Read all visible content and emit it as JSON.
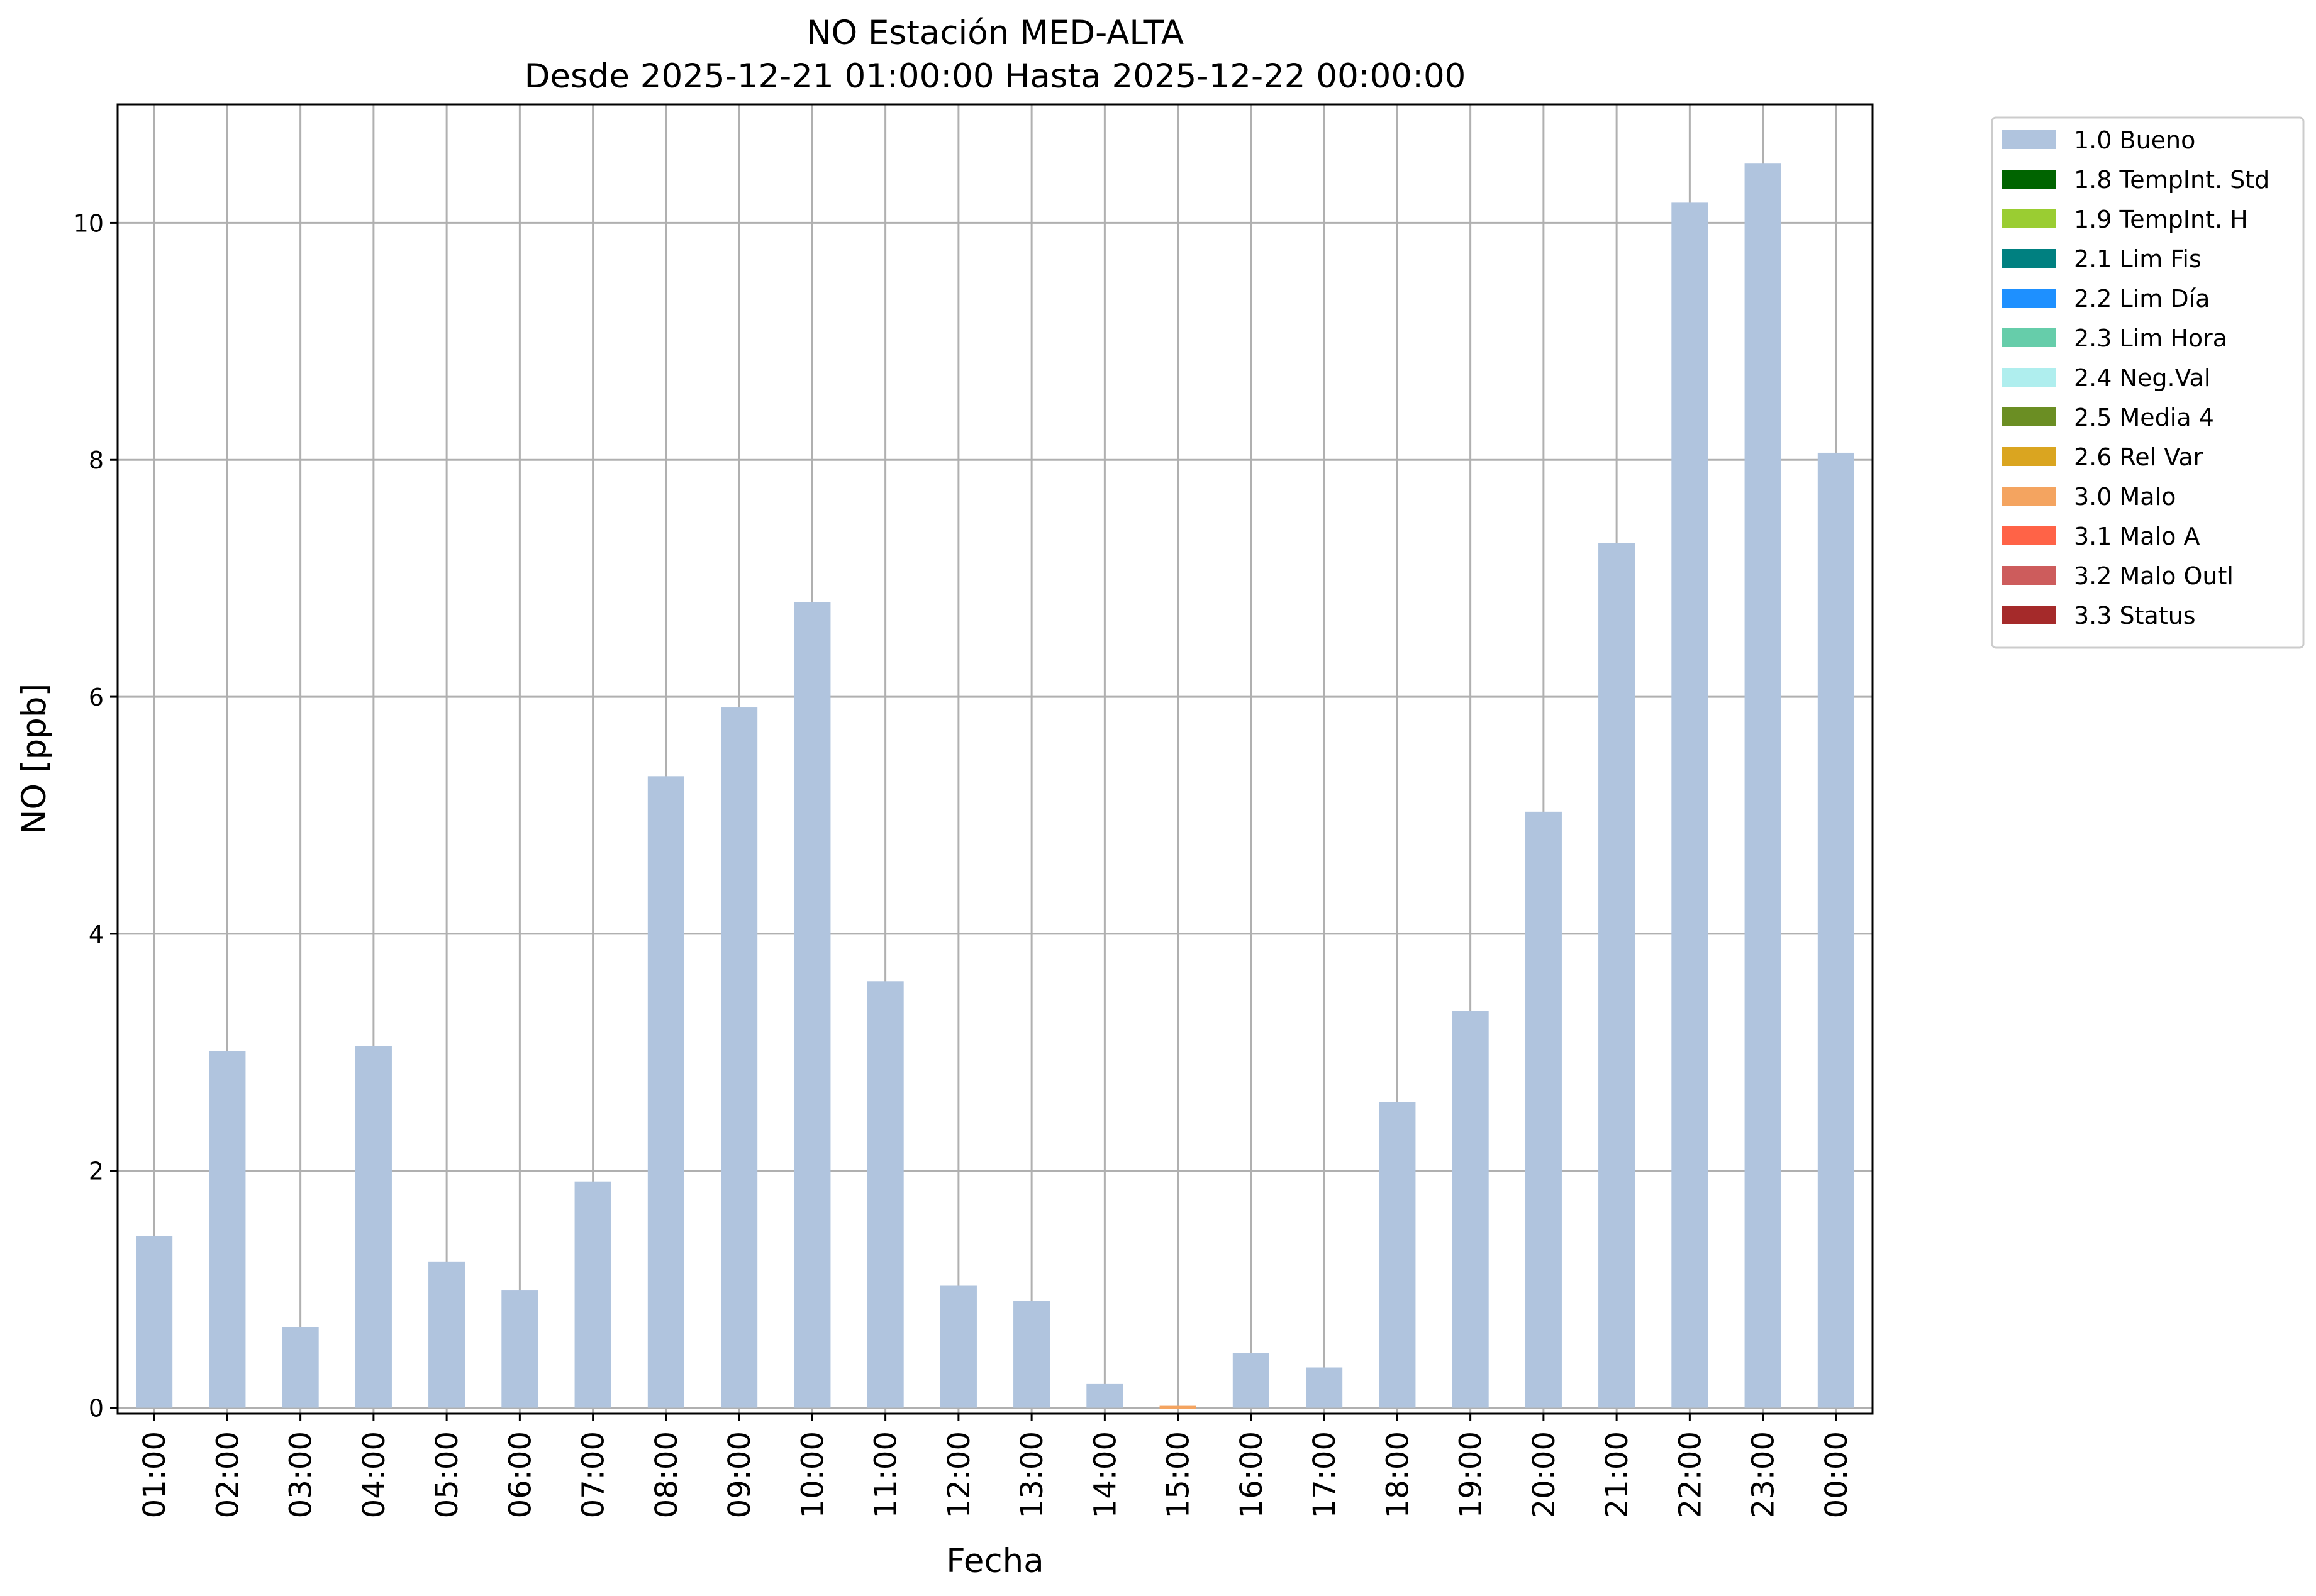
{
  "chart_data": {
    "type": "bar",
    "title": "NO Estación MED-ALTA",
    "subtitle": "Desde 2025-12-21 01:00:00 Hasta 2025-12-22 00:00:00",
    "xlabel": "Fecha",
    "ylabel": "NO [ppb]",
    "ylim": [
      -0.05,
      11.0
    ],
    "yticks": [
      0,
      2,
      4,
      6,
      8,
      10
    ],
    "grid": true,
    "legend_position": "outside-right-top",
    "categories": [
      "01:00",
      "02:00",
      "03:00",
      "04:00",
      "05:00",
      "06:00",
      "07:00",
      "08:00",
      "09:00",
      "10:00",
      "11:00",
      "12:00",
      "13:00",
      "14:00",
      "15:00",
      "16:00",
      "17:00",
      "18:00",
      "19:00",
      "20:00",
      "21:00",
      "22:00",
      "23:00",
      "00:00"
    ],
    "series": [
      {
        "name": "1.0 Bueno",
        "color": "#b0c4de",
        "values": [
          1.45,
          3.01,
          0.68,
          3.05,
          1.23,
          0.99,
          1.91,
          5.33,
          5.91,
          6.8,
          3.6,
          1.03,
          0.9,
          0.2,
          null,
          0.46,
          0.34,
          2.58,
          3.35,
          5.03,
          7.3,
          10.17,
          10.5,
          8.06
        ]
      },
      {
        "name": "3.0 Malo",
        "color": "#f4a460",
        "values": [
          null,
          null,
          null,
          null,
          null,
          null,
          null,
          null,
          null,
          null,
          null,
          null,
          null,
          null,
          0.0,
          null,
          null,
          null,
          null,
          null,
          null,
          null,
          null,
          null
        ]
      }
    ],
    "legend": [
      {
        "label": "1.0 Bueno",
        "color": "#b0c4de"
      },
      {
        "label": "1.8 TempInt. Std",
        "color": "#006400"
      },
      {
        "label": "1.9 TempInt. H",
        "color": "#9acd32"
      },
      {
        "label": "2.1 Lim Fis",
        "color": "#008080"
      },
      {
        "label": "2.2 Lim Día",
        "color": "#1e90ff"
      },
      {
        "label": "2.3 Lim Hora",
        "color": "#66cdaa"
      },
      {
        "label": "2.4 Neg.Val",
        "color": "#afeeee"
      },
      {
        "label": "2.5 Media 4",
        "color": "#6b8e23"
      },
      {
        "label": "2.6 Rel Var",
        "color": "#daa520"
      },
      {
        "label": "3.0 Malo",
        "color": "#f4a460"
      },
      {
        "label": "3.1 Malo A",
        "color": "#ff6347"
      },
      {
        "label": "3.2 Malo Outl",
        "color": "#cd5c5c"
      },
      {
        "label": "3.3 Status",
        "color": "#a52a2a"
      }
    ]
  }
}
